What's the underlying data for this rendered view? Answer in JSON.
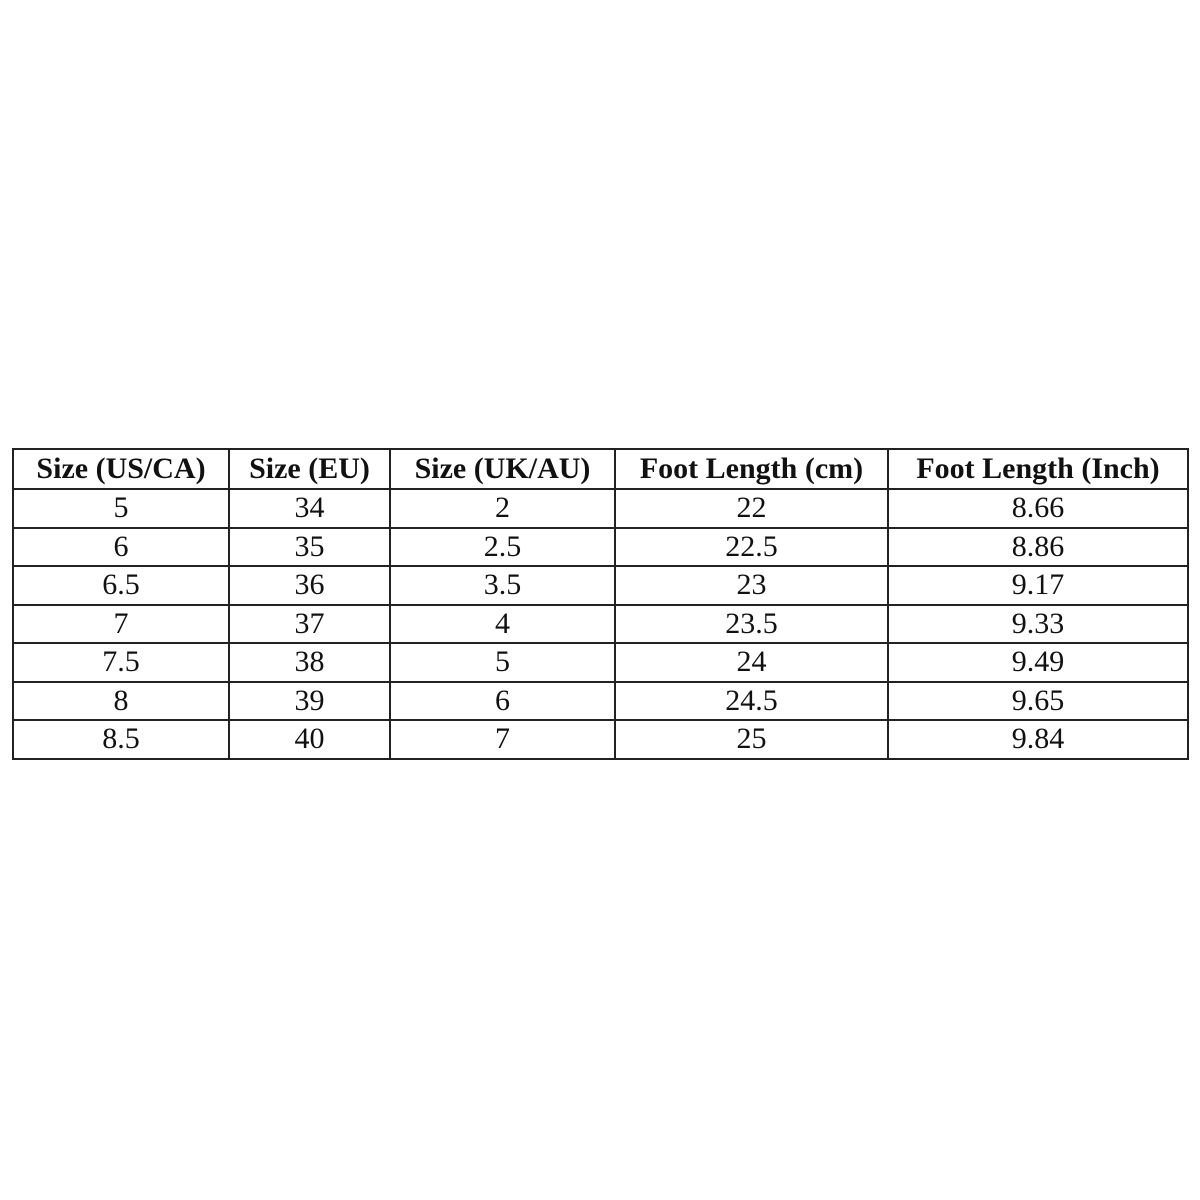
{
  "table": {
    "header": [
      "Size (US/CA)",
      "Size (EU)",
      "Size (UK/AU)",
      "Foot Length (cm)",
      "Foot Length (Inch)"
    ],
    "rows": [
      [
        "5",
        "34",
        "2",
        "22",
        "8.66"
      ],
      [
        "6",
        "35",
        "2.5",
        "22.5",
        "8.86"
      ],
      [
        "6.5",
        "36",
        "3.5",
        "23",
        "9.17"
      ],
      [
        "7",
        "37",
        "4",
        "23.5",
        "9.33"
      ],
      [
        "7.5",
        "38",
        "5",
        "24",
        "9.49"
      ],
      [
        "8",
        "39",
        "6",
        "24.5",
        "9.65"
      ],
      [
        "8.5",
        "40",
        "7",
        "25",
        "9.84"
      ]
    ]
  }
}
